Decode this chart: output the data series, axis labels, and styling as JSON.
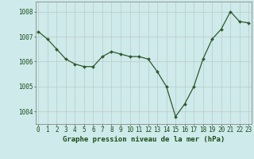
{
  "x": [
    0,
    1,
    2,
    3,
    4,
    5,
    6,
    7,
    8,
    9,
    10,
    11,
    12,
    13,
    14,
    15,
    16,
    17,
    18,
    19,
    20,
    21,
    22,
    23
  ],
  "y": [
    1007.2,
    1006.9,
    1006.5,
    1006.1,
    1005.9,
    1005.8,
    1005.8,
    1006.2,
    1006.4,
    1006.3,
    1006.2,
    1006.2,
    1006.1,
    1005.6,
    1005.0,
    1003.8,
    1004.3,
    1005.0,
    1006.1,
    1006.9,
    1007.3,
    1008.0,
    1007.6,
    1007.55
  ],
  "line_color": "#2d5a2d",
  "marker_color": "#2d5a2d",
  "bg_color": "#ceeaea",
  "grid_color": "#c0c8c8",
  "title": "Graphe pression niveau de la mer (hPa)",
  "ylabel_ticks": [
    1004,
    1005,
    1006,
    1007,
    1008
  ],
  "xlim": [
    -0.3,
    23.3
  ],
  "ylim": [
    1003.5,
    1008.4
  ],
  "title_color": "#1a4d1a",
  "tick_color": "#1a4d1a",
  "title_fontsize": 6.5,
  "tick_fontsize": 5.5
}
